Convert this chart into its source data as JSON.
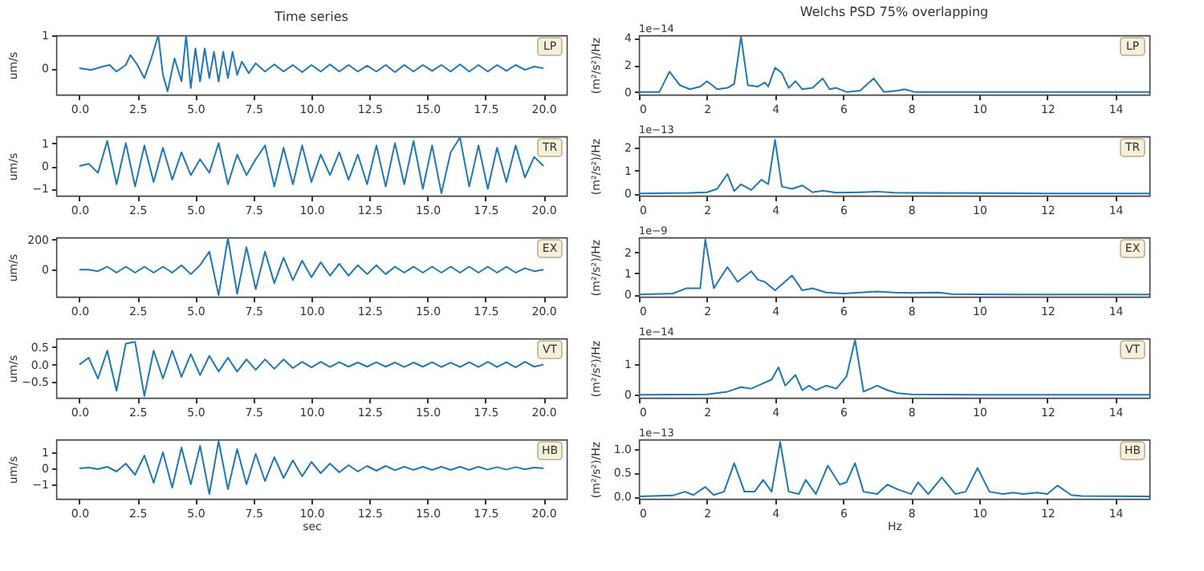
{
  "chart_data": [
    {
      "type": "line",
      "title": "Time series",
      "ylabel": "um/s",
      "annotations": [
        "LP"
      ],
      "color": "#1f77b4",
      "xlim": [
        -1,
        21
      ],
      "xticks": [
        {
          "value": 0,
          "label": "0.0"
        },
        {
          "value": 2.5,
          "label": "2.5"
        },
        {
          "value": 5,
          "label": "5.0"
        },
        {
          "value": 7.5,
          "label": "7.5"
        },
        {
          "value": 10,
          "label": "10.0"
        },
        {
          "value": 12.5,
          "label": "12.5"
        },
        {
          "value": 15,
          "label": "15.0"
        },
        {
          "value": 17.5,
          "label": "17.5"
        },
        {
          "value": 20,
          "label": "20.0"
        }
      ],
      "ylim": [
        -0.8,
        1.0
      ],
      "yticks": [
        0,
        1
      ],
      "x": [
        0,
        0.5,
        1,
        1.3,
        1.6,
        2,
        2.2,
        2.5,
        2.8,
        3.1,
        3.4,
        3.6,
        3.8,
        4.1,
        4.4,
        4.6,
        4.8,
        5.0,
        5.2,
        5.4,
        5.6,
        5.8,
        6.0,
        6.2,
        6.4,
        6.6,
        6.8,
        7.0,
        7.3,
        7.6,
        8,
        8.4,
        8.8,
        9.2,
        9.6,
        10,
        10.4,
        10.8,
        11.2,
        11.6,
        12,
        12.4,
        12.8,
        13.2,
        13.6,
        14,
        14.4,
        14.8,
        15.2,
        15.6,
        16,
        16.4,
        16.8,
        17.2,
        17.6,
        18,
        18.4,
        18.8,
        19.2,
        19.6,
        20
      ],
      "values": [
        0,
        -0.05,
        0.05,
        0.1,
        -0.1,
        0.1,
        0.4,
        0.1,
        -0.3,
        0.3,
        1.0,
        -0.2,
        -0.7,
        0.3,
        -0.4,
        1.0,
        -0.6,
        0.6,
        -0.4,
        0.6,
        -0.3,
        0.5,
        -0.4,
        0.5,
        -0.3,
        0.5,
        -0.2,
        0.2,
        -0.15,
        0.15,
        -0.1,
        0.12,
        -0.1,
        0.1,
        -0.12,
        0.1,
        -0.1,
        0.12,
        -0.1,
        0.1,
        -0.1,
        0.08,
        -0.1,
        0.1,
        -0.12,
        0.1,
        -0.1,
        0.1,
        -0.08,
        0.1,
        -0.1,
        0.12,
        -0.1,
        0.1,
        -0.1,
        0.1,
        -0.08,
        0.1,
        -0.05,
        0.05,
        0
      ]
    },
    {
      "type": "line",
      "title": "Welchs PSD 75% overlapping",
      "ylabel": "(m²/s²)/Hz",
      "annotations": [
        "LP",
        "1e−14"
      ],
      "color": "#1f77b4",
      "xlim": [
        0,
        15
      ],
      "xticks": [
        0,
        2,
        4,
        6,
        8,
        10,
        12,
        14
      ],
      "ylim": [
        -0.2,
        4.2
      ],
      "yticks": [
        0,
        2,
        4
      ],
      "x": [
        0,
        0.6,
        0.9,
        1.2,
        1.5,
        1.8,
        2.0,
        2.3,
        2.6,
        2.8,
        3.0,
        3.2,
        3.5,
        3.7,
        3.8,
        4.0,
        4.2,
        4.4,
        4.6,
        4.8,
        5.1,
        5.4,
        5.6,
        5.8,
        6.1,
        6.5,
        6.9,
        7.2,
        7.6,
        7.8,
        8.1,
        9,
        10,
        12,
        15
      ],
      "values": [
        0,
        0,
        1.5,
        0.5,
        0.2,
        0.4,
        0.8,
        0.2,
        0.3,
        0.6,
        4.1,
        0.5,
        0.4,
        0.7,
        0.4,
        1.8,
        1.4,
        0.3,
        0.8,
        0.2,
        0.3,
        1.0,
        0.2,
        0.3,
        0,
        0.1,
        1.0,
        0,
        0.1,
        0.2,
        0,
        0,
        0,
        0,
        0
      ]
    },
    {
      "type": "line",
      "ylabel": "um/s",
      "annotations": [
        "TR"
      ],
      "color": "#1f77b4",
      "xlim": [
        -1,
        21
      ],
      "xticks": [
        {
          "value": 0,
          "label": "0.0"
        },
        {
          "value": 2.5,
          "label": "2.5"
        },
        {
          "value": 5,
          "label": "5.0"
        },
        {
          "value": 7.5,
          "label": "7.5"
        },
        {
          "value": 10,
          "label": "10.0"
        },
        {
          "value": 12.5,
          "label": "12.5"
        },
        {
          "value": 15,
          "label": "15.0"
        },
        {
          "value": 17.5,
          "label": "17.5"
        },
        {
          "value": 20,
          "label": "20.0"
        }
      ],
      "ylim": [
        -1.3,
        1.3
      ],
      "yticks": [
        {
          "value": -1,
          "label": "−1"
        },
        0,
        1
      ],
      "x": [
        0,
        0.4,
        0.8,
        1.2,
        1.6,
        2,
        2.4,
        2.8,
        3.2,
        3.6,
        4,
        4.4,
        4.8,
        5.2,
        5.6,
        6,
        6.4,
        6.8,
        7.2,
        7.6,
        8,
        8.4,
        8.8,
        9.2,
        9.6,
        10,
        10.4,
        10.8,
        11.2,
        11.6,
        12,
        12.4,
        12.8,
        13.2,
        13.6,
        14,
        14.4,
        14.8,
        15.2,
        15.6,
        16,
        16.4,
        16.8,
        17.2,
        17.6,
        18,
        18.4,
        18.8,
        19.2,
        19.6,
        20
      ],
      "values": [
        0,
        0.1,
        -0.3,
        1.1,
        -0.8,
        1.0,
        -0.9,
        0.9,
        -0.7,
        0.8,
        -0.6,
        0.6,
        -0.4,
        0.3,
        -0.3,
        1.0,
        -0.8,
        0.5,
        -0.4,
        0.3,
        0.9,
        -0.9,
        0.8,
        -0.8,
        0.9,
        -0.7,
        0.5,
        -0.4,
        0.6,
        -0.6,
        0.5,
        -0.8,
        0.9,
        -0.9,
        1.0,
        -0.8,
        1.1,
        -1.0,
        0.9,
        -1.2,
        0.6,
        1.25,
        -0.9,
        0.9,
        -1.0,
        0.8,
        -0.7,
        0.9,
        -0.5,
        0.4,
        0
      ]
    },
    {
      "type": "line",
      "ylabel": "(m²/s²)/Hz",
      "annotations": [
        "TR",
        "1e−13"
      ],
      "color": "#1f77b4",
      "xlim": [
        0,
        15
      ],
      "xticks": [
        0,
        2,
        4,
        6,
        8,
        10,
        12,
        14
      ],
      "ylim": [
        -0.1,
        2.5
      ],
      "yticks": [
        0,
        1,
        2
      ],
      "x": [
        0,
        1.5,
        2.0,
        2.3,
        2.6,
        2.8,
        3.0,
        3.3,
        3.6,
        3.8,
        4.0,
        4.2,
        4.5,
        4.8,
        5.1,
        5.4,
        5.8,
        6.5,
        7,
        7.5,
        8,
        10,
        12,
        15
      ],
      "values": [
        0,
        0.02,
        0.05,
        0.2,
        0.85,
        0.1,
        0.4,
        0.15,
        0.6,
        0.4,
        2.35,
        0.3,
        0.2,
        0.35,
        0.05,
        0.12,
        0.03,
        0.05,
        0.08,
        0.03,
        0.02,
        0.01,
        0,
        0
      ]
    },
    {
      "type": "line",
      "ylabel": "um/s",
      "annotations": [
        "EX"
      ],
      "color": "#1f77b4",
      "xlim": [
        -1,
        21
      ],
      "xticks": [
        {
          "value": 0,
          "label": "0.0"
        },
        {
          "value": 2.5,
          "label": "2.5"
        },
        {
          "value": 5,
          "label": "5.0"
        },
        {
          "value": 7.5,
          "label": "7.5"
        },
        {
          "value": 10,
          "label": "10.0"
        },
        {
          "value": 12.5,
          "label": "12.5"
        },
        {
          "value": 15,
          "label": "15.0"
        },
        {
          "value": 17.5,
          "label": "17.5"
        },
        {
          "value": 20,
          "label": "20.0"
        }
      ],
      "ylim": [
        -180,
        215
      ],
      "yticks": [
        0,
        200
      ],
      "x": [
        0,
        0.4,
        0.8,
        1.2,
        1.6,
        2,
        2.4,
        2.8,
        3.2,
        3.6,
        4,
        4.4,
        4.8,
        5.2,
        5.6,
        6,
        6.4,
        6.8,
        7.2,
        7.6,
        8,
        8.4,
        8.8,
        9.2,
        9.6,
        10,
        10.4,
        10.8,
        11.2,
        11.6,
        12,
        12.4,
        12.8,
        13.2,
        13.6,
        14,
        14.4,
        14.8,
        15.2,
        15.6,
        16,
        16.4,
        16.8,
        17.2,
        17.6,
        18,
        18.4,
        18.8,
        19.2,
        19.6,
        20
      ],
      "values": [
        0,
        0,
        -10,
        20,
        -20,
        20,
        -20,
        20,
        -20,
        20,
        -20,
        30,
        -30,
        30,
        120,
        -170,
        210,
        -160,
        150,
        -130,
        120,
        -90,
        80,
        -70,
        60,
        -50,
        50,
        -40,
        40,
        -40,
        30,
        -30,
        30,
        -30,
        20,
        -20,
        20,
        -20,
        20,
        -20,
        20,
        -20,
        20,
        -20,
        20,
        -20,
        20,
        -20,
        10,
        -10,
        0
      ]
    },
    {
      "type": "line",
      "ylabel": "(m²/s²)/Hz",
      "annotations": [
        "EX",
        "1e−9"
      ],
      "color": "#1f77b4",
      "xlim": [
        0,
        15
      ],
      "xticks": [
        0,
        2,
        4,
        6,
        8,
        10,
        12,
        14
      ],
      "ylim": [
        -0.1,
        2.7
      ],
      "yticks": [
        0,
        1,
        2
      ],
      "x": [
        0,
        1,
        1.4,
        1.8,
        1.95,
        2.2,
        2.6,
        2.9,
        3.3,
        3.5,
        3.7,
        4.0,
        4.5,
        4.8,
        5.1,
        5.5,
        6,
        6.5,
        7,
        7.5,
        8,
        8.8,
        9.2,
        10,
        12,
        15
      ],
      "values": [
        0,
        0.05,
        0.3,
        0.3,
        2.6,
        0.3,
        1.3,
        0.6,
        1.1,
        0.7,
        0.6,
        0.2,
        0.9,
        0.2,
        0.3,
        0.1,
        0.05,
        0.1,
        0.15,
        0.1,
        0.08,
        0.1,
        0.02,
        0.01,
        0,
        0
      ]
    },
    {
      "type": "line",
      "ylabel": "um/s",
      "annotations": [
        "VT"
      ],
      "color": "#1f77b4",
      "xlim": [
        -1,
        21
      ],
      "xticks": [
        {
          "value": 0,
          "label": "0.0"
        },
        {
          "value": 2.5,
          "label": "2.5"
        },
        {
          "value": 5,
          "label": "5.0"
        },
        {
          "value": 7.5,
          "label": "7.5"
        },
        {
          "value": 10,
          "label": "10.0"
        },
        {
          "value": 12.5,
          "label": "12.5"
        },
        {
          "value": 15,
          "label": "15.0"
        },
        {
          "value": 17.5,
          "label": "17.5"
        },
        {
          "value": 20,
          "label": "20.0"
        }
      ],
      "ylim": [
        -0.95,
        0.75
      ],
      "yticks": [
        {
          "value": -0.5,
          "label": "−0.5"
        },
        {
          "value": 0,
          "label": "0.0"
        },
        {
          "value": 0.5,
          "label": "0.5"
        }
      ],
      "x": [
        0,
        0.4,
        0.8,
        1.2,
        1.6,
        2,
        2.4,
        2.8,
        3.2,
        3.6,
        4,
        4.4,
        4.8,
        5.2,
        5.6,
        6,
        6.4,
        6.8,
        7.2,
        7.6,
        8,
        8.4,
        8.8,
        9.2,
        9.6,
        10,
        10.4,
        10.8,
        11.2,
        11.6,
        12,
        12.4,
        12.8,
        13.2,
        13.6,
        14,
        14.4,
        14.8,
        15.2,
        15.6,
        16,
        16.4,
        16.8,
        17.2,
        17.6,
        18,
        18.4,
        18.8,
        19.2,
        19.6,
        20
      ],
      "values": [
        0,
        0.2,
        -0.4,
        0.4,
        -0.75,
        0.6,
        0.65,
        -0.9,
        0.4,
        -0.4,
        0.4,
        -0.35,
        0.3,
        -0.3,
        0.25,
        -0.2,
        0.2,
        -0.2,
        0.15,
        -0.15,
        0.15,
        -0.12,
        0.15,
        -0.1,
        0.08,
        -0.08,
        0.08,
        -0.07,
        0.07,
        -0.06,
        0.06,
        -0.06,
        0.07,
        -0.06,
        0.06,
        -0.07,
        0.06,
        -0.06,
        0.07,
        -0.07,
        0.06,
        -0.07,
        0.07,
        -0.07,
        0.08,
        -0.07,
        0.07,
        -0.08,
        0.08,
        -0.06,
        0
      ]
    },
    {
      "type": "line",
      "ylabel": "(m²/s²)/Hz",
      "annotations": [
        "VT",
        "1e−14"
      ],
      "color": "#1f77b4",
      "xlim": [
        0,
        15
      ],
      "xticks": [
        0,
        2,
        4,
        6,
        8,
        10,
        12,
        14
      ],
      "ylim": [
        -0.1,
        1.85
      ],
      "yticks": [
        0,
        1
      ],
      "x": [
        0,
        2,
        2.6,
        3,
        3.3,
        3.6,
        3.9,
        4.1,
        4.3,
        4.6,
        4.8,
        5.0,
        5.2,
        5.5,
        5.8,
        6.1,
        6.35,
        6.6,
        7.0,
        7.3,
        7.6,
        8,
        10,
        15
      ],
      "values": [
        0,
        0.01,
        0.1,
        0.25,
        0.2,
        0.35,
        0.5,
        0.9,
        0.3,
        0.65,
        0.15,
        0.3,
        0.15,
        0.3,
        0.2,
        0.6,
        1.8,
        0.1,
        0.3,
        0.15,
        0.05,
        0.01,
        0,
        0
      ]
    },
    {
      "type": "line",
      "ylabel": "um/s",
      "xlabel": "sec",
      "annotations": [
        "HB"
      ],
      "color": "#1f77b4",
      "xlim": [
        -1,
        21
      ],
      "xticks": [
        {
          "value": 0,
          "label": "0.0"
        },
        {
          "value": 2.5,
          "label": "2.5"
        },
        {
          "value": 5,
          "label": "5.0"
        },
        {
          "value": 7.5,
          "label": "7.5"
        },
        {
          "value": 10,
          "label": "10.0"
        },
        {
          "value": 12.5,
          "label": "12.5"
        },
        {
          "value": 15,
          "label": "15.0"
        },
        {
          "value": 17.5,
          "label": "17.5"
        },
        {
          "value": 20,
          "label": "20.0"
        }
      ],
      "ylim": [
        -1.9,
        1.8
      ],
      "yticks": [
        {
          "value": -1,
          "label": "−1"
        },
        0,
        1
      ],
      "x": [
        0,
        0.4,
        0.8,
        1.2,
        1.6,
        2,
        2.4,
        2.8,
        3.2,
        3.6,
        4,
        4.4,
        4.8,
        5.2,
        5.6,
        6,
        6.4,
        6.8,
        7.2,
        7.6,
        8,
        8.4,
        8.8,
        9.2,
        9.6,
        10,
        10.4,
        10.8,
        11.2,
        11.6,
        12,
        12.4,
        12.8,
        13.2,
        13.6,
        14,
        14.4,
        14.8,
        15.2,
        15.6,
        16,
        16.4,
        16.8,
        17.2,
        17.6,
        18,
        18.4,
        18.8,
        19.2,
        19.6,
        20
      ],
      "values": [
        0,
        0.05,
        -0.05,
        0.1,
        -0.2,
        0.3,
        -0.4,
        0.8,
        -0.9,
        1.0,
        -1.2,
        1.3,
        -1.0,
        1.4,
        -1.6,
        1.7,
        -1.3,
        1.2,
        -1.0,
        0.9,
        -0.8,
        0.7,
        -0.6,
        0.5,
        -0.5,
        0.4,
        -0.3,
        0.3,
        -0.25,
        0.2,
        -0.2,
        0.15,
        -0.15,
        0.15,
        -0.12,
        0.1,
        -0.1,
        0.1,
        -0.1,
        0.1,
        -0.1,
        0.1,
        -0.1,
        0.1,
        -0.08,
        0.08,
        -0.08,
        0.08,
        -0.06,
        0.05,
        0
      ]
    },
    {
      "type": "line",
      "ylabel": "(m²/s²)/Hz",
      "xlabel": "Hz",
      "annotations": [
        "HB",
        "1e−13"
      ],
      "color": "#1f77b4",
      "xlim": [
        0,
        15
      ],
      "xticks": [
        0,
        2,
        4,
        6,
        8,
        10,
        12,
        14
      ],
      "ylim": [
        -0.05,
        1.2
      ],
      "yticks": [
        {
          "value": 0,
          "label": "0.0"
        },
        {
          "value": 0.5,
          "label": "0.5"
        },
        {
          "value": 1,
          "label": "1.0"
        }
      ],
      "x": [
        0,
        1,
        1.35,
        1.6,
        1.95,
        2.2,
        2.5,
        2.8,
        3.1,
        3.4,
        3.65,
        3.9,
        4.15,
        4.4,
        4.7,
        4.9,
        5.2,
        5.55,
        5.9,
        6.1,
        6.35,
        6.6,
        7,
        7.3,
        7.6,
        8,
        8.2,
        8.5,
        8.9,
        9.3,
        9.6,
        9.95,
        10.3,
        10.7,
        11,
        11.3,
        11.7,
        12,
        12.3,
        12.7,
        13,
        15
      ],
      "values": [
        0,
        0.02,
        0.1,
        0.03,
        0.2,
        0.03,
        0.1,
        0.7,
        0.1,
        0.1,
        0.35,
        0.1,
        1.15,
        0.1,
        0.05,
        0.35,
        0.05,
        0.65,
        0.25,
        0.3,
        0.7,
        0.1,
        0.05,
        0.25,
        0.15,
        0.05,
        0.3,
        0.05,
        0.4,
        0.05,
        0.1,
        0.6,
        0.1,
        0.05,
        0.08,
        0.05,
        0.08,
        0.05,
        0.23,
        0.03,
        0.01,
        0
      ]
    }
  ]
}
